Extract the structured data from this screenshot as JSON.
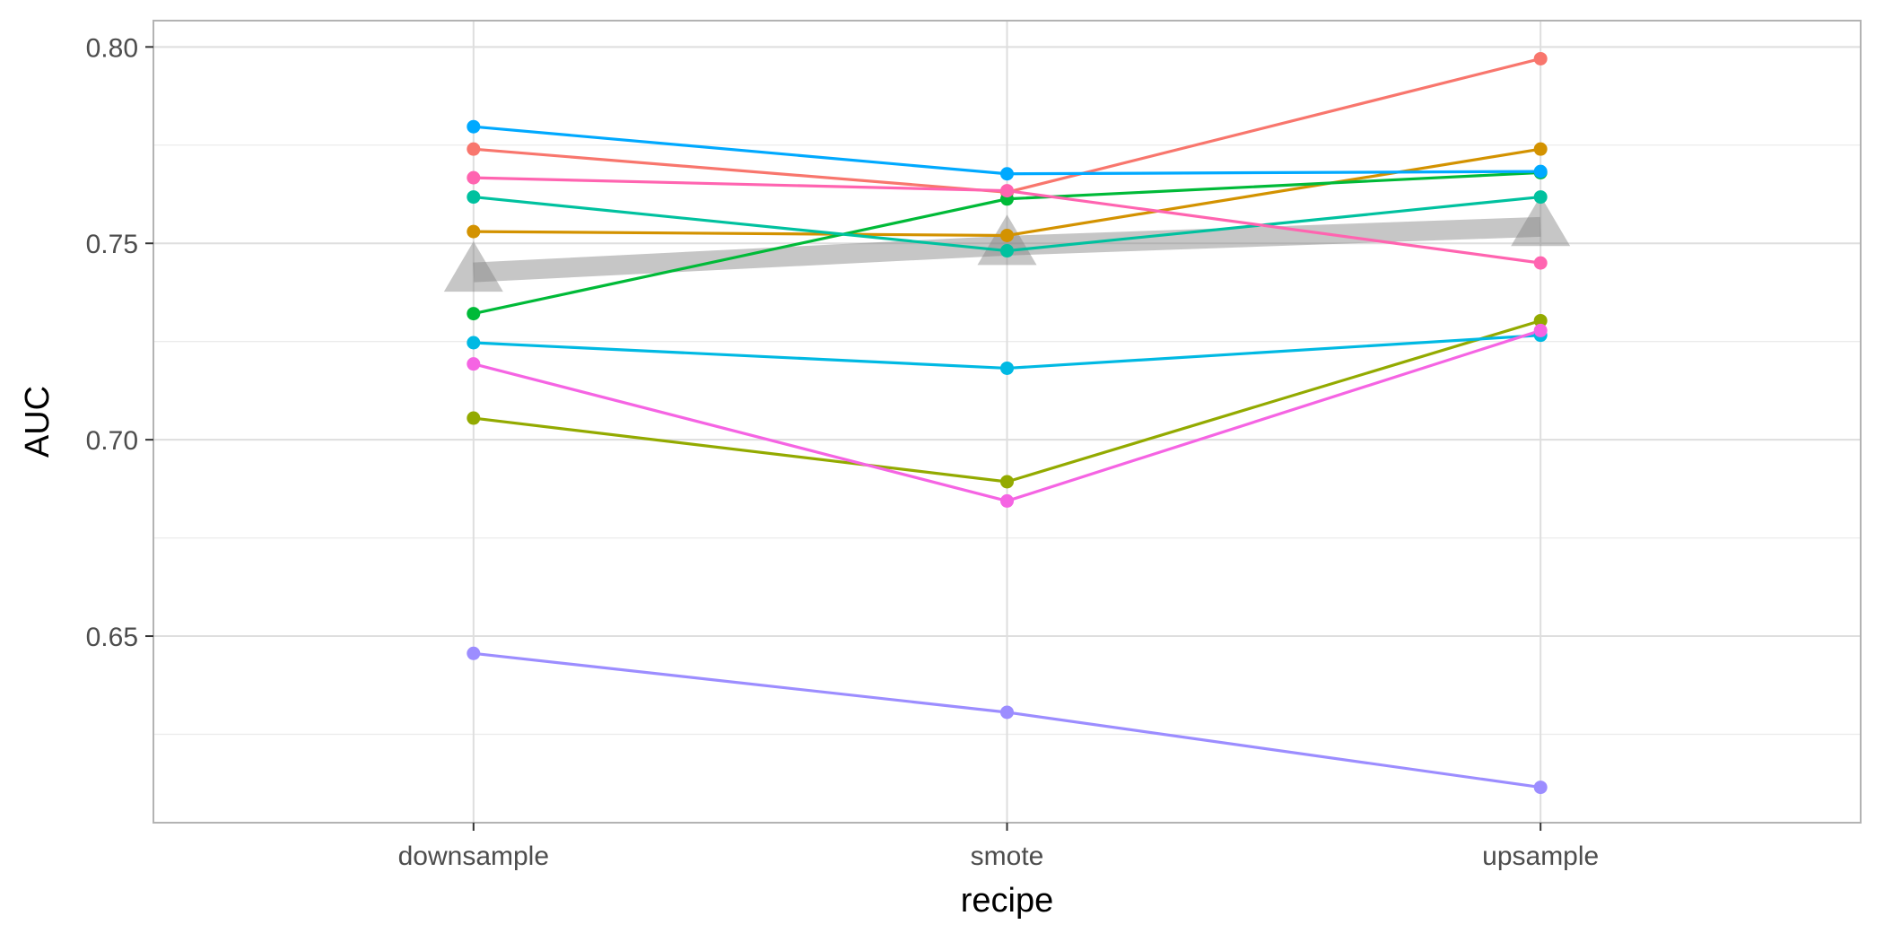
{
  "chart_data": {
    "type": "line",
    "title": "",
    "xlabel": "recipe",
    "ylabel": "AUC",
    "categories": [
      "downsample",
      "smote",
      "upsample"
    ],
    "ylim": [
      0.6025,
      0.8067
    ],
    "y_ticks": [
      "0.65",
      "0.70",
      "0.75",
      "0.80"
    ],
    "grid": true,
    "legend": "none",
    "series": [
      {
        "color": "#F8766D",
        "values": [
          0.774,
          0.763,
          0.797
        ]
      },
      {
        "color": "#D39200",
        "values": [
          0.753,
          0.752,
          0.774
        ]
      },
      {
        "color": "#93AA00",
        "values": [
          0.7055,
          0.6893,
          0.7303
        ]
      },
      {
        "color": "#00BA38",
        "values": [
          0.7321,
          0.7613,
          0.768
        ]
      },
      {
        "color": "#00C19F",
        "values": [
          0.7618,
          0.7481,
          0.7618
        ]
      },
      {
        "color": "#00B9E3",
        "values": [
          0.7247,
          0.7182,
          0.7266
        ]
      },
      {
        "color": "#00A9FF",
        "values": [
          0.7797,
          0.7677,
          0.7683
        ]
      },
      {
        "color": "#9C8DFF",
        "values": [
          0.6456,
          0.6306,
          0.6115
        ]
      },
      {
        "color": "#F564E3",
        "values": [
          0.7193,
          0.6844,
          0.7278
        ]
      },
      {
        "color": "#FF64B0",
        "values": [
          0.7667,
          0.7634,
          0.745
        ]
      }
    ],
    "mean_series": {
      "color": "#808080",
      "values": [
        0.7426,
        0.7494,
        0.7542
      ]
    }
  }
}
